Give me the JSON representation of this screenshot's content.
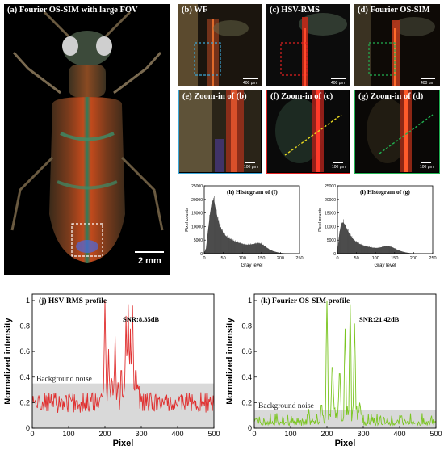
{
  "panels": {
    "a": {
      "label": "(a)  Fourier OS-SIM with large FOV",
      "scale": "2 mm"
    },
    "b": {
      "label": "(b) WF",
      "scale": "400 μm",
      "roi_color": "#3aa6d8"
    },
    "c": {
      "label": "(c) HSV-RMS",
      "scale": "400 μm",
      "roi_color": "#e02020"
    },
    "d": {
      "label": "(d) Fourier OS-SIM",
      "scale": "400 μm",
      "roi_color": "#20b050"
    },
    "e": {
      "label": "(e) Zoom-in of (b)",
      "scale": "100 μm",
      "border_color": "#3aa6d8"
    },
    "f": {
      "label": "(f) Zoom-in of (c)",
      "scale": "100 μm",
      "border_color": "#e02020",
      "line_color": "#e8d820"
    },
    "g": {
      "label": "(g) Zoom-in of (d)",
      "scale": "100 μm",
      "border_color": "#20b050",
      "line_color": "#20b050"
    }
  },
  "chart_data": [
    {
      "type": "area",
      "title": "(h) Histogram of (f)",
      "xlabel": "Gray level",
      "ylabel": "Pixel counts",
      "xlim": [
        0,
        250
      ],
      "ylim": [
        0,
        25000
      ],
      "xticks": [
        "0",
        "50",
        "100",
        "150",
        "200",
        "250"
      ],
      "yticks": [
        "0",
        "5000",
        "10000",
        "15000",
        "20000",
        "25000"
      ],
      "color": "#555555",
      "x": [
        0,
        5,
        10,
        15,
        20,
        25,
        30,
        35,
        40,
        45,
        50,
        60,
        70,
        80,
        90,
        100,
        110,
        120,
        130,
        140,
        150,
        160,
        170,
        180,
        190,
        200,
        210,
        220,
        230,
        240,
        250
      ],
      "y": [
        0,
        2000,
        8000,
        14000,
        19000,
        20000,
        16000,
        13000,
        10500,
        9000,
        7500,
        6000,
        5200,
        4500,
        4000,
        3500,
        3200,
        3300,
        3500,
        3800,
        3600,
        2600,
        1600,
        900,
        500,
        200,
        80,
        30,
        10,
        0,
        0
      ]
    },
    {
      "type": "area",
      "title": "(i) Histogram of (g)",
      "xlabel": "Gray level",
      "ylabel": "Pixel counts",
      "xlim": [
        0,
        250
      ],
      "ylim": [
        0,
        25000
      ],
      "xticks": [
        "0",
        "50",
        "100",
        "150",
        "200",
        "250"
      ],
      "yticks": [
        "0",
        "5000",
        "10000",
        "15000",
        "20000",
        "25000"
      ],
      "color": "#555555",
      "x": [
        0,
        5,
        10,
        15,
        20,
        25,
        30,
        40,
        50,
        60,
        70,
        80,
        90,
        100,
        110,
        120,
        130,
        140,
        150,
        160,
        170,
        180,
        190,
        200,
        220,
        250
      ],
      "y": [
        0,
        7000,
        11000,
        11500,
        10500,
        9000,
        7500,
        5500,
        4200,
        3400,
        2800,
        2500,
        2200,
        2000,
        2100,
        2500,
        2700,
        2500,
        1900,
        1200,
        700,
        350,
        150,
        50,
        10,
        0
      ]
    },
    {
      "type": "line",
      "title": "(j) HSV-RMS profile",
      "annotation": "SNR:8.35dB",
      "band_label": "Background noise",
      "xlabel": "Pixel",
      "ylabel": "Normalized intensity",
      "xlim": [
        0,
        500
      ],
      "ylim": [
        0,
        1.05
      ],
      "xticks": [
        "0",
        "100",
        "200",
        "300",
        "400",
        "500"
      ],
      "yticks": [
        "0",
        "0.2",
        "0.4",
        "0.6",
        "0.8",
        "1"
      ],
      "background_band": [
        0,
        0.35
      ],
      "color": "#e03030",
      "peaks": [
        [
          200,
          1.0
        ],
        [
          210,
          0.62
        ],
        [
          228,
          0.72
        ],
        [
          245,
          0.55
        ],
        [
          258,
          0.88
        ],
        [
          264,
          0.97
        ],
        [
          270,
          0.78
        ],
        [
          276,
          0.96
        ],
        [
          285,
          0.55
        ]
      ]
    },
    {
      "type": "line",
      "title": "(k) Fourier OS-SIM profile",
      "annotation": "SNR:21.42dB",
      "band_label": "Background noise",
      "xlabel": "Pixel",
      "ylabel": "Normalized intensity",
      "xlim": [
        0,
        500
      ],
      "ylim": [
        0,
        1.05
      ],
      "xticks": [
        "0",
        "100",
        "200",
        "300",
        "400",
        "500"
      ],
      "yticks": [
        "0",
        "0.2",
        "0.4",
        "0.6",
        "0.8",
        "1"
      ],
      "background_band": [
        0,
        0.14
      ],
      "color": "#7ac520",
      "peaks": [
        [
          150,
          0.15
        ],
        [
          185,
          0.22
        ],
        [
          200,
          1.0
        ],
        [
          215,
          0.58
        ],
        [
          235,
          0.52
        ],
        [
          250,
          0.78
        ],
        [
          264,
          0.97
        ],
        [
          276,
          0.82
        ],
        [
          290,
          0.2
        ]
      ]
    }
  ]
}
